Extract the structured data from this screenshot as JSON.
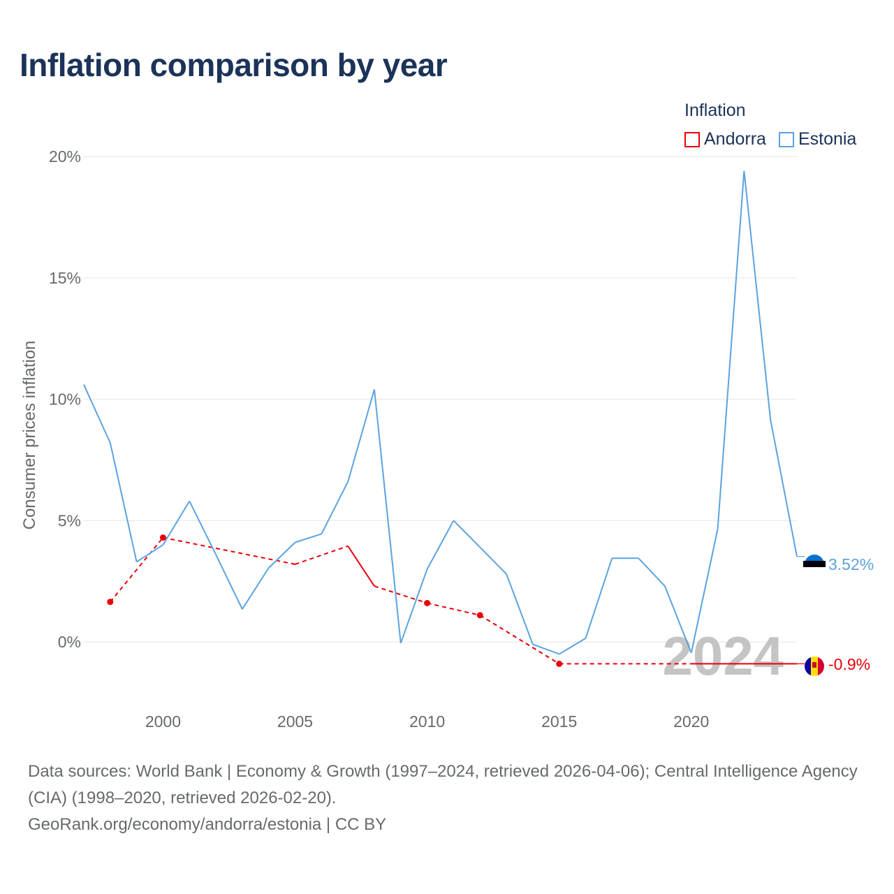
{
  "title": "Inflation comparison by year",
  "legend": {
    "title": "Inflation",
    "items": [
      {
        "label": "Andorra",
        "color": "#e8000b"
      },
      {
        "label": "Estonia",
        "color": "#5ba3e0"
      }
    ]
  },
  "chart_data": {
    "type": "line",
    "title": "Inflation comparison by year",
    "xlabel": "",
    "ylabel": "Consumer prices inflation",
    "xlim": [
      1997,
      2024
    ],
    "ylim": [
      -2.5,
      20
    ],
    "yticks": [
      0,
      5,
      10,
      15,
      20
    ],
    "ytick_labels": [
      "0%",
      "5%",
      "10%",
      "15%",
      "20%"
    ],
    "xticks": [
      2000,
      2005,
      2010,
      2015,
      2020
    ],
    "xtick_labels": [
      "2000",
      "2005",
      "2010",
      "2015",
      "2020"
    ],
    "grid": true,
    "watermark_year": "2024",
    "series": [
      {
        "name": "Andorra",
        "color": "#e8000b",
        "x": [
          1998,
          2000,
          2005,
          2007,
          2008,
          2010,
          2012,
          2015,
          2020,
          2024
        ],
        "y": [
          1.65,
          4.3,
          3.2,
          3.95,
          2.3,
          1.6,
          1.1,
          -0.9,
          -0.9,
          -0.9
        ],
        "markers": [
          1998,
          2000,
          2010,
          2012,
          2015
        ],
        "solid_segments": [
          [
            2007,
            2008
          ],
          [
            2018,
            2024
          ]
        ],
        "end_label": "-0.9%"
      },
      {
        "name": "Estonia",
        "color": "#5ba3e0",
        "x": [
          1997,
          1998,
          1999,
          2000,
          2001,
          2002,
          2003,
          2004,
          2005,
          2006,
          2007,
          2008,
          2009,
          2010,
          2011,
          2012,
          2013,
          2014,
          2015,
          2016,
          2017,
          2018,
          2019,
          2020,
          2021,
          2022,
          2023,
          2024
        ],
        "y": [
          10.6,
          8.2,
          3.3,
          4.0,
          5.8,
          3.6,
          1.35,
          3.05,
          4.1,
          4.45,
          6.6,
          10.4,
          -0.05,
          3.0,
          5.0,
          3.9,
          2.8,
          -0.1,
          -0.5,
          0.15,
          3.45,
          3.45,
          2.3,
          -0.45,
          4.65,
          19.4,
          9.15,
          3.52
        ],
        "end_label": "3.52%"
      }
    ]
  },
  "footer": {
    "sources": "Data sources: World Bank | Economy & Growth (1997–2024, retrieved 2026-04-06); Central Intelligence Agency (CIA) (1998–2020, retrieved 2026-02-20).",
    "credit": "GeoRank.org/economy/andorra/estonia | CC BY"
  }
}
